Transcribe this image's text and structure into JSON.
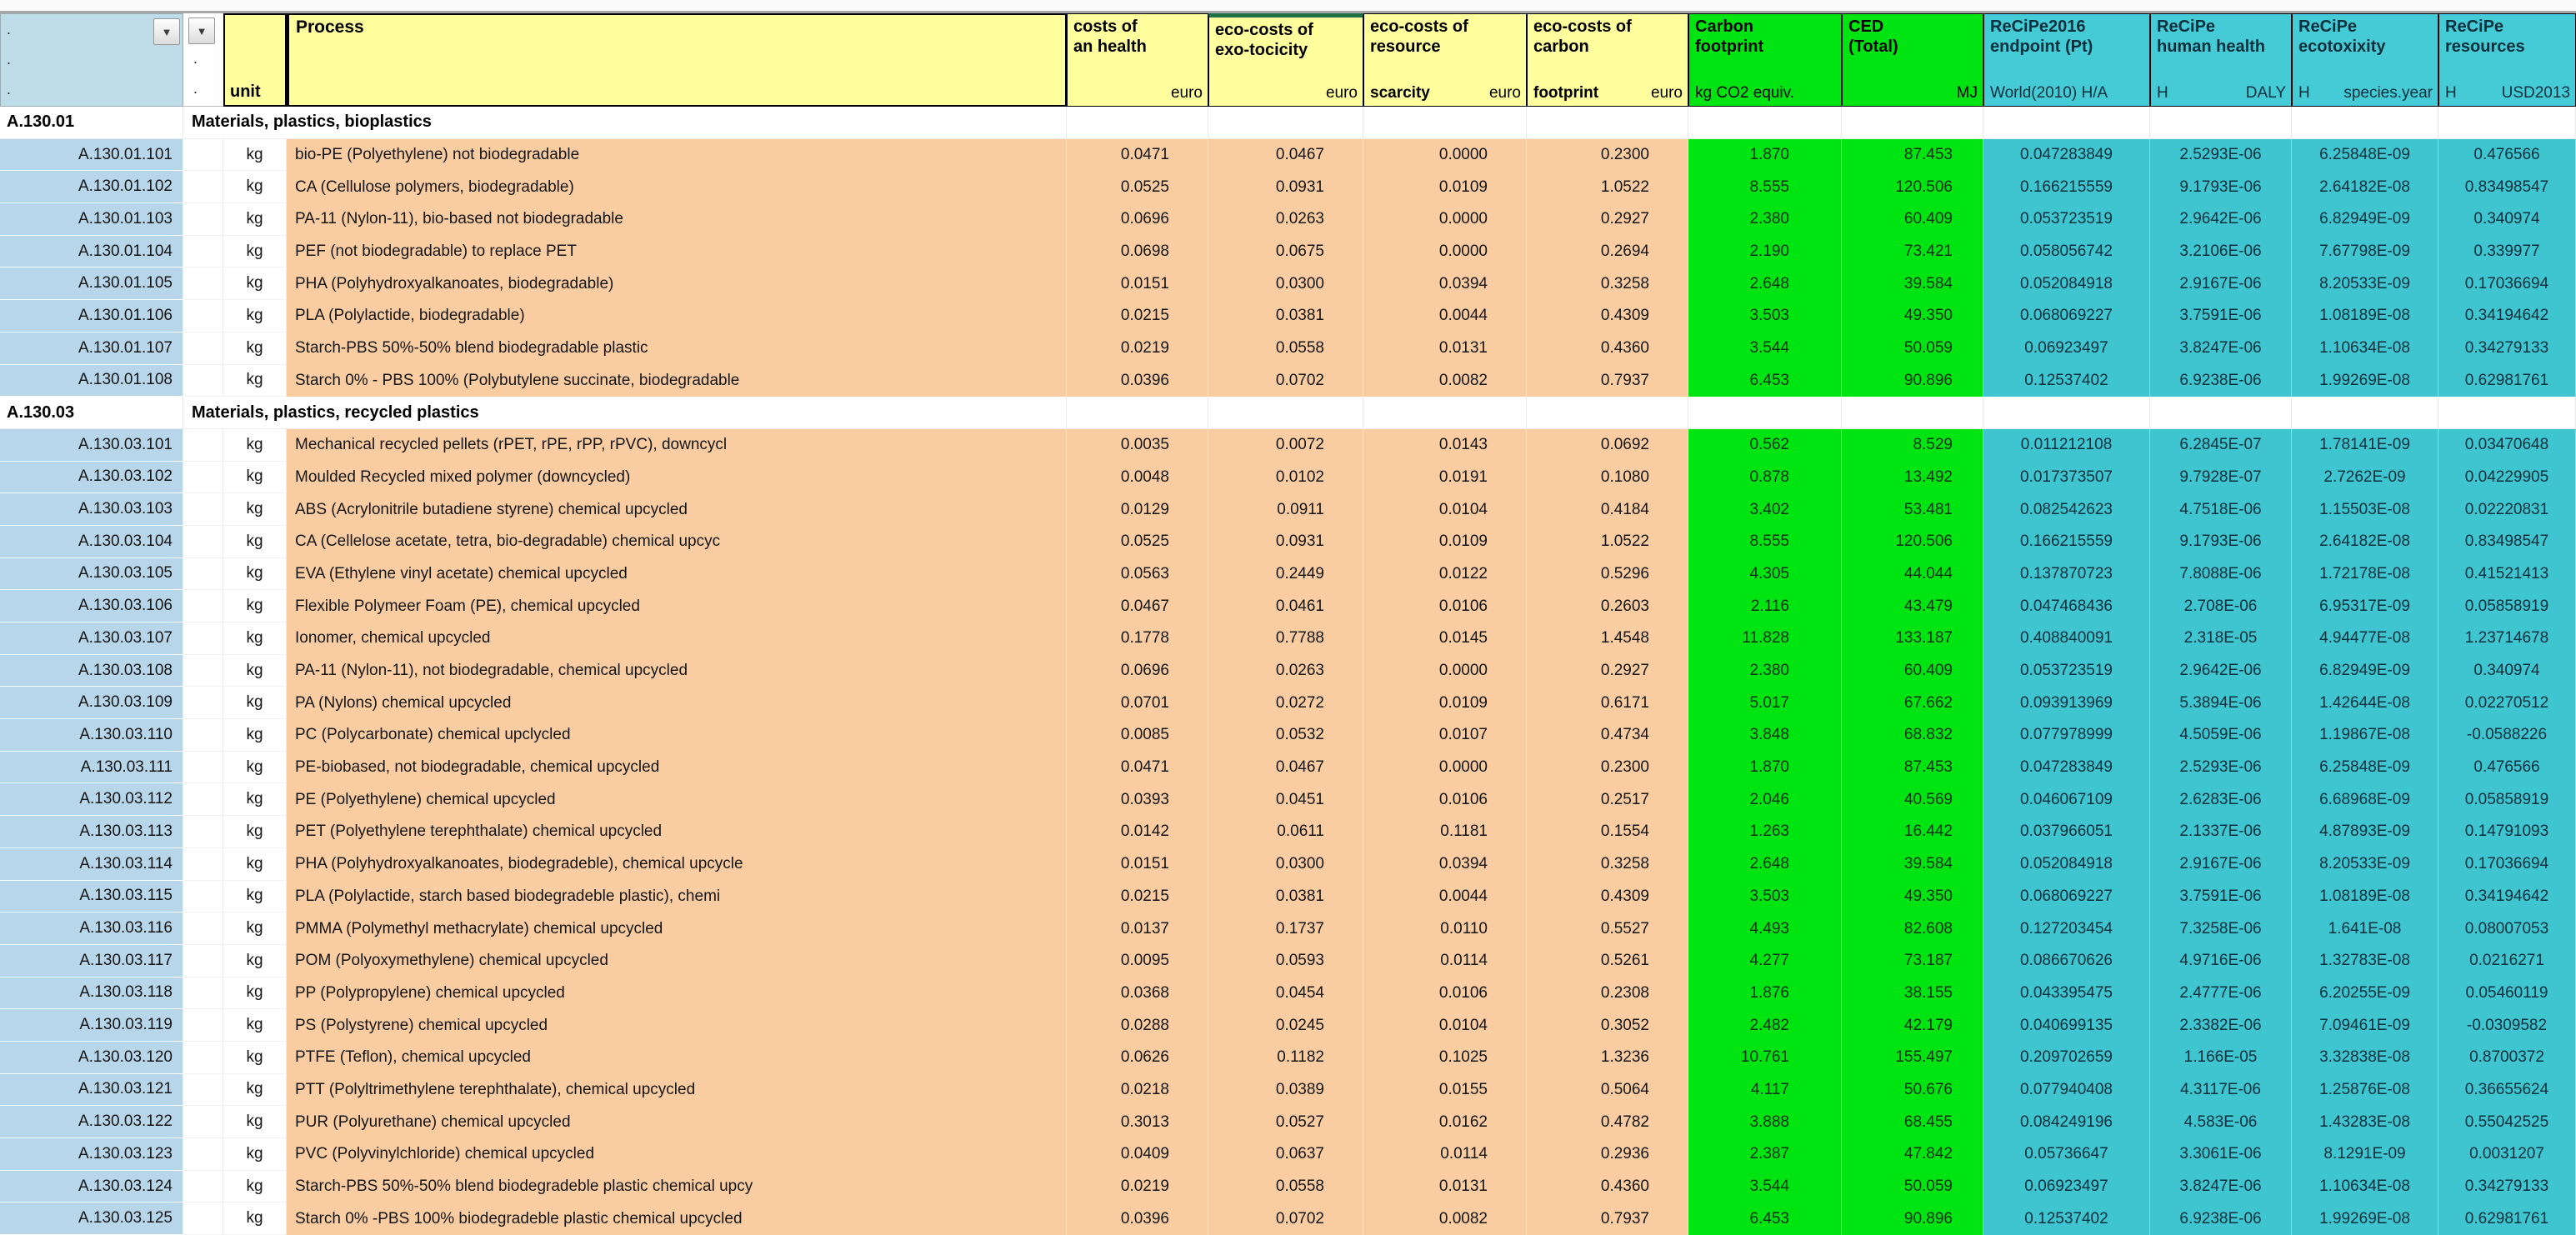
{
  "app": {
    "type": "spreadsheet-eco-costs-table"
  },
  "colors": {
    "header_yellow": "#ffff9e",
    "header_blue": "#bedce7",
    "green": "#00e412",
    "teal_header": "#45cbd6",
    "teal_body": "#3fc5cf",
    "orange_body": "#f9cda1",
    "code_blue": "#b7d6ea",
    "accent_border": "#1e7145"
  },
  "header": {
    "process_label": "Process",
    "unit_label": "unit",
    "filter_icon": "chevron-down-icon",
    "columns": [
      {
        "line1": "costs of",
        "line2": "an health",
        "unit_left": "",
        "unit_left_bold": false,
        "unit_right": "euro",
        "group": "euro",
        "accent_top": false
      },
      {
        "line1": "eco-costs of",
        "line2": "exo-tocicity",
        "unit_left": "",
        "unit_left_bold": false,
        "unit_right": "euro",
        "group": "euro",
        "accent_top": true
      },
      {
        "line1": "eco-costs of",
        "line2": "resource",
        "unit_left": "scarcity",
        "unit_left_bold": true,
        "unit_right": "euro",
        "group": "euro",
        "accent_top": false
      },
      {
        "line1": "eco-costs of",
        "line2": "carbon",
        "unit_left": "footprint",
        "unit_left_bold": true,
        "unit_right": "euro",
        "group": "euro",
        "accent_top": false
      },
      {
        "line1": "Carbon",
        "line2": "footprint",
        "unit_left": "kg CO2 equiv.",
        "unit_left_bold": false,
        "unit_right": "",
        "group": "green",
        "accent_top": false
      },
      {
        "line1": "CED",
        "line2": "(Total)",
        "unit_left": "",
        "unit_left_bold": false,
        "unit_right": "MJ",
        "group": "green",
        "accent_top": false
      },
      {
        "line1": "ReCiPe2016",
        "line2": "endpoint (Pt)",
        "unit_left": "World(2010) H/A",
        "unit_left_bold": false,
        "unit_right": "",
        "group": "teal",
        "accent_top": false
      },
      {
        "line1": "ReCiPe",
        "line2": "human health",
        "unit_left": "H",
        "unit_left_bold": false,
        "unit_right": "DALY",
        "group": "teal",
        "accent_top": false
      },
      {
        "line1": "ReCiPe",
        "line2": "ecotoxixity",
        "unit_left": "H",
        "unit_left_bold": false,
        "unit_right": "species.year",
        "group": "teal",
        "accent_top": false
      },
      {
        "line1": "ReCiPe",
        "line2": "resources",
        "unit_left": "H",
        "unit_left_bold": false,
        "unit_right": "USD2013",
        "group": "teal",
        "accent_top": false
      }
    ]
  },
  "sections": [
    {
      "code": "A.130.01",
      "title": "Materials, plastics, bioplastics",
      "rows": [
        {
          "code": "A.130.01.101",
          "unit": "kg",
          "process": "bio-PE (Polyethylene) not biodegradable",
          "values": [
            "0.0471",
            "0.0467",
            "0.0000",
            "0.2300",
            "1.870",
            "87.453",
            "0.047283849",
            "2.5293E-06",
            "6.25848E-09",
            "0.476566"
          ]
        },
        {
          "code": "A.130.01.102",
          "unit": "kg",
          "process": "CA (Cellulose polymers, biodegradable)",
          "values": [
            "0.0525",
            "0.0931",
            "0.0109",
            "1.0522",
            "8.555",
            "120.506",
            "0.166215559",
            "9.1793E-06",
            "2.64182E-08",
            "0.83498547"
          ]
        },
        {
          "code": "A.130.01.103",
          "unit": "kg",
          "process": "PA-11 (Nylon-11), bio-based not biodegradable",
          "values": [
            "0.0696",
            "0.0263",
            "0.0000",
            "0.2927",
            "2.380",
            "60.409",
            "0.053723519",
            "2.9642E-06",
            "6.82949E-09",
            "0.340974"
          ]
        },
        {
          "code": "A.130.01.104",
          "unit": "kg",
          "process": "PEF (not biodegradable) to replace PET",
          "values": [
            "0.0698",
            "0.0675",
            "0.0000",
            "0.2694",
            "2.190",
            "73.421",
            "0.058056742",
            "3.2106E-06",
            "7.67798E-09",
            "0.339977"
          ]
        },
        {
          "code": "A.130.01.105",
          "unit": "kg",
          "process": "PHA (Polyhydroxyalkanoates, biodegradable)",
          "values": [
            "0.0151",
            "0.0300",
            "0.0394",
            "0.3258",
            "2.648",
            "39.584",
            "0.052084918",
            "2.9167E-06",
            "8.20533E-09",
            "0.17036694"
          ]
        },
        {
          "code": "A.130.01.106",
          "unit": "kg",
          "process": "PLA (Polylactide, biodegradable)",
          "values": [
            "0.0215",
            "0.0381",
            "0.0044",
            "0.4309",
            "3.503",
            "49.350",
            "0.068069227",
            "3.7591E-06",
            "1.08189E-08",
            "0.34194642"
          ]
        },
        {
          "code": "A.130.01.107",
          "unit": "kg",
          "process": "Starch-PBS 50%-50% blend biodegradable plastic",
          "values": [
            "0.0219",
            "0.0558",
            "0.0131",
            "0.4360",
            "3.544",
            "50.059",
            "0.06923497",
            "3.8247E-06",
            "1.10634E-08",
            "0.34279133"
          ]
        },
        {
          "code": "A.130.01.108",
          "unit": "kg",
          "process": "Starch 0% - PBS 100% (Polybutylene succinate, biodegradable",
          "values": [
            "0.0396",
            "0.0702",
            "0.0082",
            "0.7937",
            "6.453",
            "90.896",
            "0.12537402",
            "6.9238E-06",
            "1.99269E-08",
            "0.62981761"
          ]
        }
      ]
    },
    {
      "code": "A.130.03",
      "title": "Materials, plastics, recycled plastics",
      "rows": [
        {
          "code": "A.130.03.101",
          "unit": "kg",
          "process": "Mechanical recycled pellets (rPET, rPE, rPP, rPVC), downcycl",
          "values": [
            "0.0035",
            "0.0072",
            "0.0143",
            "0.0692",
            "0.562",
            "8.529",
            "0.011212108",
            "6.2845E-07",
            "1.78141E-09",
            "0.03470648"
          ]
        },
        {
          "code": "A.130.03.102",
          "unit": "kg",
          "process": "Moulded Recycled mixed polymer (downcycled)",
          "values": [
            "0.0048",
            "0.0102",
            "0.0191",
            "0.1080",
            "0.878",
            "13.492",
            "0.017373507",
            "9.7928E-07",
            "2.7262E-09",
            "0.04229905"
          ]
        },
        {
          "code": "A.130.03.103",
          "unit": "kg",
          "process": "ABS (Acrylonitrile butadiene styrene) chemical upcycled",
          "values": [
            "0.0129",
            "0.0911",
            "0.0104",
            "0.4184",
            "3.402",
            "53.481",
            "0.082542623",
            "4.7518E-06",
            "1.15503E-08",
            "0.02220831"
          ]
        },
        {
          "code": "A.130.03.104",
          "unit": "kg",
          "process": "CA (Cellelose acetate, tetra, bio-degradable) chemical upcyc",
          "values": [
            "0.0525",
            "0.0931",
            "0.0109",
            "1.0522",
            "8.555",
            "120.506",
            "0.166215559",
            "9.1793E-06",
            "2.64182E-08",
            "0.83498547"
          ]
        },
        {
          "code": "A.130.03.105",
          "unit": "kg",
          "process": "EVA (Ethylene vinyl acetate) chemical upcycled",
          "values": [
            "0.0563",
            "0.2449",
            "0.0122",
            "0.5296",
            "4.305",
            "44.044",
            "0.137870723",
            "7.8088E-06",
            "1.72178E-08",
            "0.41521413"
          ]
        },
        {
          "code": "A.130.03.106",
          "unit": "kg",
          "process": "Flexible Polymeer Foam (PE), chemical upcycled",
          "values": [
            "0.0467",
            "0.0461",
            "0.0106",
            "0.2603",
            "2.116",
            "43.479",
            "0.047468436",
            "2.708E-06",
            "6.95317E-09",
            "0.05858919"
          ]
        },
        {
          "code": "A.130.03.107",
          "unit": "kg",
          "process": "Ionomer, chemical upcycled",
          "values": [
            "0.1778",
            "0.7788",
            "0.0145",
            "1.4548",
            "11.828",
            "133.187",
            "0.408840091",
            "2.318E-05",
            "4.94477E-08",
            "1.23714678"
          ]
        },
        {
          "code": "A.130.03.108",
          "unit": "kg",
          "process": "PA-11 (Nylon-11), not biodegradable, chemical upcycled",
          "values": [
            "0.0696",
            "0.0263",
            "0.0000",
            "0.2927",
            "2.380",
            "60.409",
            "0.053723519",
            "2.9642E-06",
            "6.82949E-09",
            "0.340974"
          ]
        },
        {
          "code": "A.130.03.109",
          "unit": "kg",
          "process": "PA (Nylons) chemical upcycled",
          "values": [
            "0.0701",
            "0.0272",
            "0.0109",
            "0.6171",
            "5.017",
            "67.662",
            "0.093913969",
            "5.3894E-06",
            "1.42644E-08",
            "0.02270512"
          ]
        },
        {
          "code": "A.130.03.110",
          "unit": "kg",
          "process": "PC (Polycarbonate) chemical upclycled",
          "values": [
            "0.0085",
            "0.0532",
            "0.0107",
            "0.4734",
            "3.848",
            "68.832",
            "0.077978999",
            "4.5059E-06",
            "1.19867E-08",
            "-0.0588226"
          ]
        },
        {
          "code": "A.130.03.111",
          "unit": "kg",
          "process": "PE-biobased, not biodegradable, chemical upcycled",
          "values": [
            "0.0471",
            "0.0467",
            "0.0000",
            "0.2300",
            "1.870",
            "87.453",
            "0.047283849",
            "2.5293E-06",
            "6.25848E-09",
            "0.476566"
          ]
        },
        {
          "code": "A.130.03.112",
          "unit": "kg",
          "process": "PE (Polyethylene) chemical upcycled",
          "values": [
            "0.0393",
            "0.0451",
            "0.0106",
            "0.2517",
            "2.046",
            "40.569",
            "0.046067109",
            "2.6283E-06",
            "6.68968E-09",
            "0.05858919"
          ]
        },
        {
          "code": "A.130.03.113",
          "unit": "kg",
          "process": "PET (Polyethylene terephthalate) chemical upcycled",
          "values": [
            "0.0142",
            "0.0611",
            "0.1181",
            "0.1554",
            "1.263",
            "16.442",
            "0.037966051",
            "2.1337E-06",
            "4.87893E-09",
            "0.14791093"
          ]
        },
        {
          "code": "A.130.03.114",
          "unit": "kg",
          "process": "PHA (Polyhydroxyalkanoates, biodegradeble), chemical upcycle",
          "values": [
            "0.0151",
            "0.0300",
            "0.0394",
            "0.3258",
            "2.648",
            "39.584",
            "0.052084918",
            "2.9167E-06",
            "8.20533E-09",
            "0.17036694"
          ]
        },
        {
          "code": "A.130.03.115",
          "unit": "kg",
          "process": "PLA (Polylactide, starch based biodegradeble plastic), chemi",
          "values": [
            "0.0215",
            "0.0381",
            "0.0044",
            "0.4309",
            "3.503",
            "49.350",
            "0.068069227",
            "3.7591E-06",
            "1.08189E-08",
            "0.34194642"
          ]
        },
        {
          "code": "A.130.03.116",
          "unit": "kg",
          "process": "PMMA (Polymethyl methacrylate) chemical upcycled",
          "values": [
            "0.0137",
            "0.1737",
            "0.0110",
            "0.5527",
            "4.493",
            "82.608",
            "0.127203454",
            "7.3258E-06",
            "1.641E-08",
            "0.08007053"
          ]
        },
        {
          "code": "A.130.03.117",
          "unit": "kg",
          "process": "POM (Polyoxymethylene) chemical upcycled",
          "values": [
            "0.0095",
            "0.0593",
            "0.0114",
            "0.5261",
            "4.277",
            "73.187",
            "0.086670626",
            "4.9716E-06",
            "1.32783E-08",
            "0.0216271"
          ]
        },
        {
          "code": "A.130.03.118",
          "unit": "kg",
          "process": "PP (Polypropylene) chemical upcycled",
          "values": [
            "0.0368",
            "0.0454",
            "0.0106",
            "0.2308",
            "1.876",
            "38.155",
            "0.043395475",
            "2.4777E-06",
            "6.20255E-09",
            "0.05460119"
          ]
        },
        {
          "code": "A.130.03.119",
          "unit": "kg",
          "process": "PS (Polystyrene) chemical upcycled",
          "values": [
            "0.0288",
            "0.0245",
            "0.0104",
            "0.3052",
            "2.482",
            "42.179",
            "0.040699135",
            "2.3382E-06",
            "7.09461E-09",
            "-0.0309582"
          ]
        },
        {
          "code": "A.130.03.120",
          "unit": "kg",
          "process": "PTFE (Teflon), chemical upcycled",
          "values": [
            "0.0626",
            "0.1182",
            "0.1025",
            "1.3236",
            "10.761",
            "155.497",
            "0.209702659",
            "1.166E-05",
            "3.32838E-08",
            "0.8700372"
          ]
        },
        {
          "code": "A.130.03.121",
          "unit": "kg",
          "process": "PTT (Polyltrimethylene terephthalate), chemical upcycled",
          "values": [
            "0.0218",
            "0.0389",
            "0.0155",
            "0.5064",
            "4.117",
            "50.676",
            "0.077940408",
            "4.3117E-06",
            "1.25876E-08",
            "0.36655624"
          ]
        },
        {
          "code": "A.130.03.122",
          "unit": "kg",
          "process": "PUR (Polyurethane) chemical upcycled",
          "values": [
            "0.3013",
            "0.0527",
            "0.0162",
            "0.4782",
            "3.888",
            "68.455",
            "0.084249196",
            "4.583E-06",
            "1.43283E-08",
            "0.55042525"
          ]
        },
        {
          "code": "A.130.03.123",
          "unit": "kg",
          "process": "PVC (Polyvinylchloride) chemical upcycled",
          "values": [
            "0.0409",
            "0.0637",
            "0.0114",
            "0.2936",
            "2.387",
            "47.842",
            "0.05736647",
            "3.3061E-06",
            "8.1291E-09",
            "0.0031207"
          ]
        },
        {
          "code": "A.130.03.124",
          "unit": "kg",
          "process": "Starch-PBS 50%-50% blend biodegradeble plastic chemical upcy",
          "values": [
            "0.0219",
            "0.0558",
            "0.0131",
            "0.4360",
            "3.544",
            "50.059",
            "0.06923497",
            "3.8247E-06",
            "1.10634E-08",
            "0.34279133"
          ]
        },
        {
          "code": "A.130.03.125",
          "unit": "kg",
          "process": "Starch 0% -PBS 100% biodegradeble plastic chemical upcycled",
          "values": [
            "0.0396",
            "0.0702",
            "0.0082",
            "0.7937",
            "6.453",
            "90.896",
            "0.12537402",
            "6.9238E-06",
            "1.99269E-08",
            "0.62981761"
          ]
        }
      ]
    }
  ]
}
